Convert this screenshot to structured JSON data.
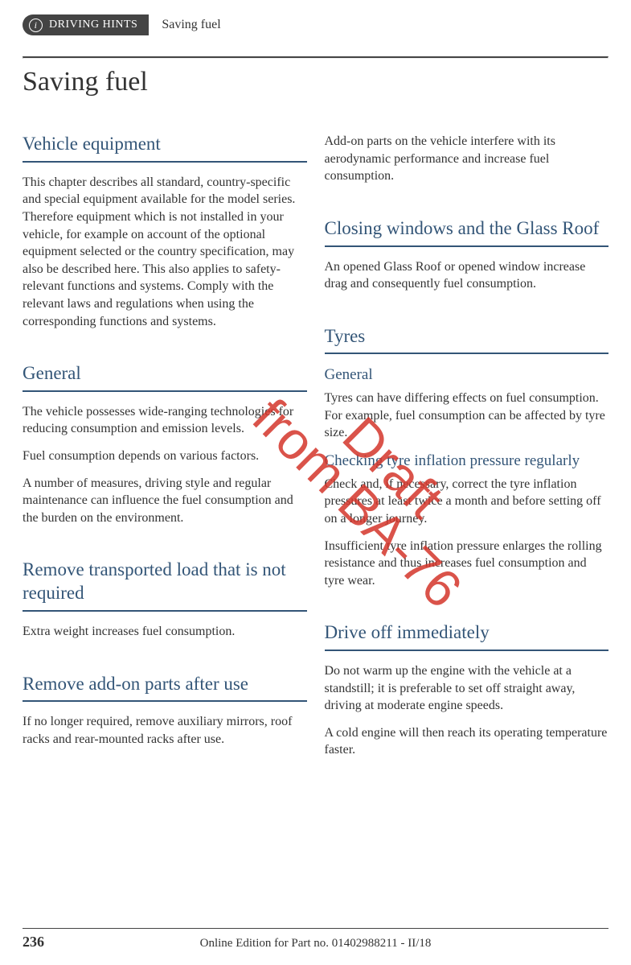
{
  "header": {
    "chip": "DRIVING HINTS",
    "title": "Saving fuel"
  },
  "page_title": "Saving fuel",
  "colors": {
    "accent": "#335577",
    "text": "#333333",
    "watermark": "#d4362b",
    "chip_bg": "#444444"
  },
  "watermark": {
    "line1": "Draft",
    "line2": "from BA-76"
  },
  "left": {
    "s1": {
      "heading": "Vehicle equipment",
      "p1": "This chapter describes all standard, country-specific and special equipment available for the model series. Therefore equipment which is not installed in your vehicle, for example on account of the optional equipment selected or the country specification, may also be described here. This also applies to safety-relevant functions and systems. Comply with the relevant laws and regulations when using the corresponding functions and systems."
    },
    "s2": {
      "heading": "General",
      "p1": "The vehicle possesses wide-ranging technologies for reducing consumption and emission levels.",
      "p2": "Fuel consumption depends on various factors.",
      "p3": "A number of measures, driving style and regular maintenance can influence the fuel consumption and the burden on the environment."
    },
    "s3": {
      "heading": "Remove transported load that is not required",
      "p1": "Extra weight increases fuel consumption."
    },
    "s4": {
      "heading": "Remove add-on parts after use",
      "p1": "If no longer required, remove auxiliary mirrors, roof racks and rear-mounted racks after use."
    }
  },
  "right": {
    "p0": "Add-on parts on the vehicle interfere with its aerodynamic performance and increase fuel consumption.",
    "s1": {
      "heading": "Closing windows and the Glass Roof",
      "p1": "An opened Glass Roof or opened window increase drag and consequently fuel consumption."
    },
    "s2": {
      "heading": "Tyres",
      "sub1": "General",
      "p1": "Tyres can have differing effects on fuel consumption. For example, fuel consumption can be affected by tyre size.",
      "sub2": "Checking tyre inflation pressure regularly",
      "p2": "Check and, if necessary, correct the tyre inflation pressures at least twice a month and before setting off on a longer journey.",
      "p3": "Insufficient tyre inflation pressure enlarges the rolling resistance and thus increases fuel consumption and tyre wear."
    },
    "s3": {
      "heading": "Drive off immediately",
      "p1": "Do not warm up the engine with the vehicle at a standstill; it is preferable to set off straight away, driving at moderate engine speeds.",
      "p2": "A cold engine will then reach its operating temperature faster."
    }
  },
  "footer": {
    "page": "236",
    "text": "Online Edition for Part no. 01402988211 - II/18"
  }
}
